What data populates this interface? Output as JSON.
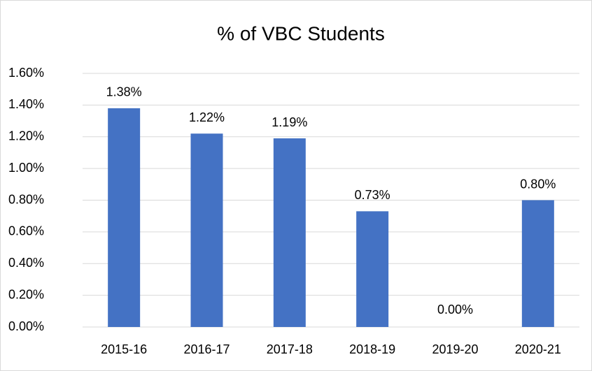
{
  "chart_data": {
    "type": "bar",
    "title": "% of VBC Students",
    "categories": [
      "2015-16",
      "2016-17",
      "2017-18",
      "2018-19",
      "2019-20",
      "2020-21"
    ],
    "values": [
      1.38,
      1.22,
      1.19,
      0.73,
      0,
      0.8
    ],
    "value_labels": [
      "1.38%",
      "1.22%",
      "1.19%",
      "0.73%",
      "0.00%",
      "0.80%"
    ],
    "color": "#4472c4",
    "ylim": [
      0,
      1.6
    ],
    "yticks": [
      {
        "value": 0,
        "label": "0.00%"
      },
      {
        "value": 0.2,
        "label": "0.20%"
      },
      {
        "value": 0.4,
        "label": "0.40%"
      },
      {
        "value": 0.6,
        "label": "0.60%"
      },
      {
        "value": 0.8,
        "label": "0.80%"
      },
      {
        "value": 1.0,
        "label": "1.00%"
      },
      {
        "value": 1.2,
        "label": "1.20%"
      },
      {
        "value": 1.4,
        "label": "1.40%"
      },
      {
        "value": 1.6,
        "label": "1.60%"
      }
    ],
    "grid": true
  }
}
